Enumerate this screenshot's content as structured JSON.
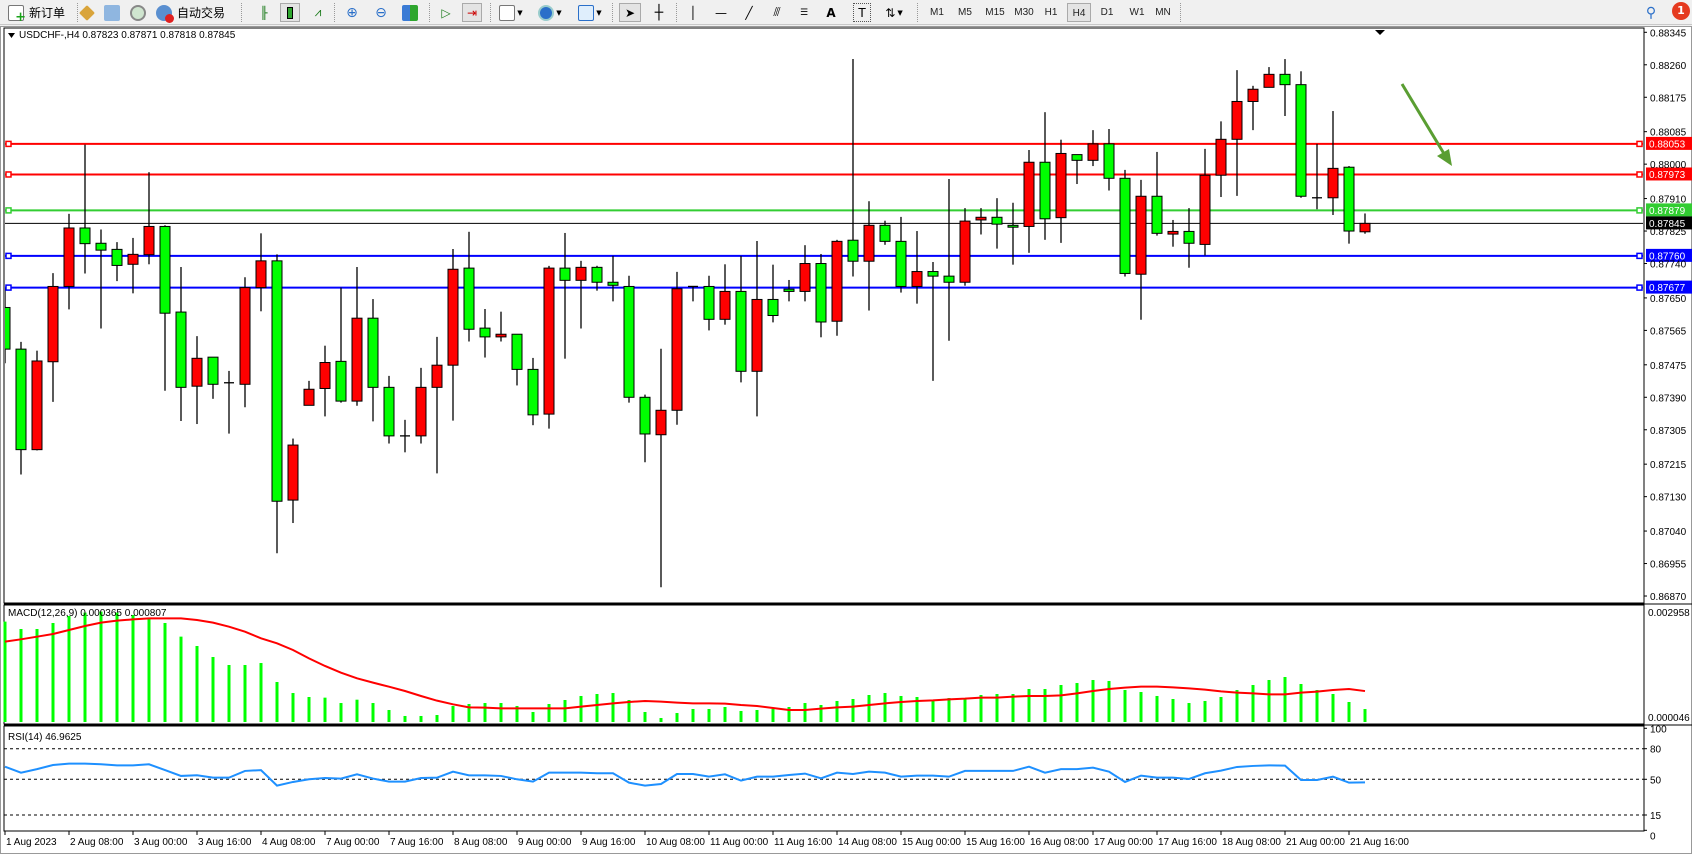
{
  "toolbar": {
    "new_order": "新订单",
    "auto_trading": "自动交易",
    "timeframes": [
      "M1",
      "M5",
      "M15",
      "M30",
      "H1",
      "H4",
      "D1",
      "W1",
      "MN"
    ],
    "active_timeframe": "H4",
    "notification_count": "1",
    "icons": [
      "new-order-icon",
      "strategy-icon",
      "history-center-icon",
      "signals-icon",
      "auto-trading-icon",
      "bar-chart-icon",
      "candlestick-icon",
      "line-chart-icon",
      "zoom-in-icon",
      "zoom-out-icon",
      "tile-windows-icon",
      "auto-scroll-icon",
      "chart-shift-icon",
      "indicators-icon",
      "periods-icon",
      "templates-icon",
      "cursor-icon",
      "crosshair-icon",
      "vertical-line-icon",
      "horizontal-line-icon",
      "trendline-icon",
      "equidistant-channel-icon",
      "fibonacci-icon",
      "text-icon",
      "text-label-icon",
      "arrows-icon",
      "search-icon",
      "notification-icon"
    ]
  },
  "chart": {
    "symbol_info": "USDCHF-,H4  0.87823 0.87871 0.87818 0.87845",
    "price_ticks": [
      "0.88345",
      "0.88260",
      "0.88175",
      "0.88085",
      "0.88000",
      "0.87910",
      "0.87825",
      "0.87740",
      "0.87650",
      "0.87565",
      "0.87475",
      "0.87390",
      "0.87305",
      "0.87215",
      "0.87130",
      "0.87040",
      "0.86955",
      "0.86870"
    ],
    "levels": [
      {
        "price": 0.88053,
        "label": "0.88053",
        "color": "#ff0000"
      },
      {
        "price": 0.87973,
        "label": "0.87973",
        "color": "#ff0000"
      },
      {
        "price": 0.87879,
        "label": "0.87879",
        "color": "#32cd32"
      },
      {
        "price": 0.8776,
        "label": "0.87760",
        "color": "#0000ff"
      },
      {
        "price": 0.87677,
        "label": "0.87677",
        "color": "#0000ff"
      }
    ],
    "current_price": {
      "price": 0.87845,
      "label": "0.87845"
    },
    "bull_color": "#ff0000",
    "bear_color": "#00ff00",
    "arrow_color": "#5a9e32"
  },
  "chart_data": {
    "type": "candlestick",
    "ylim": [
      0.8687,
      0.88345
    ],
    "candles_ohlc": [
      [
        0.87625,
        0.87675,
        0.87479,
        0.87516
      ],
      [
        0.87516,
        0.87535,
        0.87188,
        0.87253
      ],
      [
        0.87253,
        0.87512,
        0.87251,
        0.87485
      ],
      [
        0.87483,
        0.87715,
        0.87378,
        0.8768
      ],
      [
        0.8768,
        0.8787,
        0.8762,
        0.87833
      ],
      [
        0.87833,
        0.88051,
        0.87714,
        0.87792
      ],
      [
        0.87793,
        0.87829,
        0.8757,
        0.87775
      ],
      [
        0.87777,
        0.87796,
        0.87694,
        0.87735
      ],
      [
        0.87738,
        0.87807,
        0.87662,
        0.87764
      ],
      [
        0.87763,
        0.87979,
        0.87738,
        0.87837
      ],
      [
        0.87837,
        0.8784,
        0.87407,
        0.8761
      ],
      [
        0.87613,
        0.87731,
        0.87328,
        0.87416
      ],
      [
        0.87419,
        0.8755,
        0.8732,
        0.87492
      ],
      [
        0.87495,
        0.87495,
        0.87386,
        0.87424
      ],
      [
        0.87428,
        0.87459,
        0.87295,
        0.87428
      ],
      [
        0.87424,
        0.87704,
        0.87364,
        0.87677
      ],
      [
        0.87677,
        0.87819,
        0.87615,
        0.87747
      ],
      [
        0.87747,
        0.87764,
        0.86982,
        0.87118
      ],
      [
        0.87121,
        0.87282,
        0.87061,
        0.87265
      ],
      [
        0.87369,
        0.87433,
        0.87369,
        0.87411
      ],
      [
        0.87413,
        0.87525,
        0.8734,
        0.87481
      ],
      [
        0.87484,
        0.87677,
        0.87376,
        0.8738
      ],
      [
        0.8738,
        0.87731,
        0.87368,
        0.87597
      ],
      [
        0.87597,
        0.87647,
        0.87327,
        0.87416
      ],
      [
        0.87416,
        0.87446,
        0.87269,
        0.87289
      ],
      [
        0.87289,
        0.87331,
        0.87246,
        0.87289
      ],
      [
        0.87289,
        0.87467,
        0.87269,
        0.87416
      ],
      [
        0.87416,
        0.87548,
        0.87191,
        0.87474
      ],
      [
        0.87474,
        0.87778,
        0.87329,
        0.87725
      ],
      [
        0.87728,
        0.87823,
        0.87536,
        0.87568
      ],
      [
        0.87571,
        0.87621,
        0.87494,
        0.87548
      ],
      [
        0.87548,
        0.87614,
        0.87536,
        0.87555
      ],
      [
        0.87555,
        0.87555,
        0.87421,
        0.87463
      ],
      [
        0.87463,
        0.87493,
        0.87317,
        0.87344
      ],
      [
        0.87346,
        0.87734,
        0.87308,
        0.87728
      ],
      [
        0.87728,
        0.8782,
        0.87491,
        0.87696
      ],
      [
        0.87696,
        0.87747,
        0.8757,
        0.8773
      ],
      [
        0.8773,
        0.87734,
        0.87669,
        0.87691
      ],
      [
        0.87691,
        0.8776,
        0.87641,
        0.87683
      ],
      [
        0.8768,
        0.87708,
        0.87376,
        0.8739
      ],
      [
        0.8739,
        0.87397,
        0.8722,
        0.87294
      ],
      [
        0.87292,
        0.87517,
        0.86893,
        0.87356
      ],
      [
        0.87356,
        0.87718,
        0.87318,
        0.87674
      ],
      [
        0.8768,
        0.8768,
        0.87641,
        0.87678
      ],
      [
        0.8768,
        0.87708,
        0.87565,
        0.87594
      ],
      [
        0.87594,
        0.87738,
        0.8758,
        0.87667
      ],
      [
        0.87667,
        0.8776,
        0.87429,
        0.87458
      ],
      [
        0.87458,
        0.87799,
        0.8734,
        0.87646
      ],
      [
        0.87646,
        0.87737,
        0.87586,
        0.87604
      ],
      [
        0.87673,
        0.87697,
        0.87641,
        0.87667
      ],
      [
        0.87667,
        0.87788,
        0.87641,
        0.8774
      ],
      [
        0.8774,
        0.87765,
        0.87547,
        0.87587
      ],
      [
        0.87589,
        0.87802,
        0.87551,
        0.87798
      ],
      [
        0.87801,
        0.88275,
        0.87706,
        0.87746
      ],
      [
        0.87746,
        0.87903,
        0.87617,
        0.8784
      ],
      [
        0.8784,
        0.87852,
        0.87789,
        0.87798
      ],
      [
        0.87798,
        0.87862,
        0.87664,
        0.8768
      ],
      [
        0.8768,
        0.87825,
        0.87635,
        0.87719
      ],
      [
        0.87719,
        0.87744,
        0.87433,
        0.87707
      ],
      [
        0.87707,
        0.87961,
        0.87538,
        0.87691
      ],
      [
        0.87691,
        0.87885,
        0.87682,
        0.87851
      ],
      [
        0.87854,
        0.87885,
        0.87816,
        0.87861
      ],
      [
        0.87861,
        0.87911,
        0.87779,
        0.87843
      ],
      [
        0.8784,
        0.87899,
        0.87737,
        0.87835
      ],
      [
        0.87837,
        0.88037,
        0.87768,
        0.88005
      ],
      [
        0.88005,
        0.88136,
        0.87802,
        0.87857
      ],
      [
        0.8786,
        0.88064,
        0.87794,
        0.88028
      ],
      [
        0.88025,
        0.88025,
        0.87948,
        0.8801
      ],
      [
        0.8801,
        0.88089,
        0.87995,
        0.88053
      ],
      [
        0.88053,
        0.88092,
        0.87931,
        0.87963
      ],
      [
        0.87963,
        0.87985,
        0.87706,
        0.87714
      ],
      [
        0.87712,
        0.87959,
        0.87593,
        0.87916
      ],
      [
        0.87916,
        0.88032,
        0.87813,
        0.87819
      ],
      [
        0.87817,
        0.87854,
        0.87784,
        0.87824
      ],
      [
        0.87824,
        0.87885,
        0.87729,
        0.87793
      ],
      [
        0.8779,
        0.8804,
        0.87761,
        0.87971
      ],
      [
        0.87971,
        0.88112,
        0.87914,
        0.88065
      ],
      [
        0.88065,
        0.88246,
        0.87917,
        0.88164
      ],
      [
        0.88164,
        0.88205,
        0.88089,
        0.88196
      ],
      [
        0.88201,
        0.88254,
        0.88201,
        0.88235
      ],
      [
        0.88235,
        0.88275,
        0.88126,
        0.88208
      ],
      [
        0.88208,
        0.88243,
        0.87912,
        0.87916
      ],
      [
        0.87912,
        0.88053,
        0.87882,
        0.87912
      ],
      [
        0.87912,
        0.88139,
        0.87867,
        0.87989
      ],
      [
        0.87992,
        0.87995,
        0.87792,
        0.87825
      ],
      [
        0.87823,
        0.87871,
        0.87818,
        0.87845
      ]
    ],
    "time_labels": [
      "1 Aug 2023",
      "2 Aug 08:00",
      "3 Aug 00:00",
      "3 Aug 16:00",
      "4 Aug 08:00",
      "7 Aug 00:00",
      "7 Aug 16:00",
      "8 Aug 08:00",
      "9 Aug 00:00",
      "9 Aug 16:00",
      "10 Aug 08:00",
      "11 Aug 00:00",
      "11 Aug 16:00",
      "14 Aug 08:00",
      "15 Aug 00:00",
      "15 Aug 16:00",
      "16 Aug 08:00",
      "17 Aug 00:00",
      "17 Aug 16:00",
      "18 Aug 08:00",
      "21 Aug 00:00",
      "21 Aug 16:00"
    ],
    "macd": {
      "label": "MACD(12,26,9) 0.000365 0.000807",
      "ylim": [
        4.6e-05,
        0.002958
      ],
      "axis_labels": [
        "0.002958",
        "0.000046"
      ],
      "histogram": [
        0.002514,
        0.002334,
        0.002334,
        0.002481,
        0.002654,
        0.002736,
        0.00276,
        0.002736,
        0.002678,
        0.002596,
        0.002481,
        0.002145,
        0.001916,
        0.001645,
        0.001448,
        0.001448,
        0.001497,
        0.00103,
        0.000759,
        0.000661,
        0.000645,
        0.000513,
        0.000595,
        0.000513,
        0.000341,
        0.000194,
        0.000194,
        0.000218,
        0.00044,
        0.000489,
        0.000513,
        0.000513,
        0.00044,
        0.000292,
        0.000489,
        0.000587,
        0.000686,
        0.000735,
        0.000759,
        0.000587,
        0.000292,
        0.000144,
        0.000267,
        0.000366,
        0.000366,
        0.000415,
        0.000317,
        0.000341,
        0.000366,
        0.000415,
        0.000513,
        0.000464,
        0.000563,
        0.000612,
        0.00071,
        0.000759,
        0.000686,
        0.000661,
        0.000563,
        0.000636,
        0.000636,
        0.00071,
        0.000735,
        0.000735,
        0.000858,
        0.000858,
        0.000956,
        0.001005,
        0.001079,
        0.001055,
        0.000833,
        0.000784,
        0.000686,
        0.000612,
        0.000513,
        0.000563,
        0.000661,
        0.000833,
        0.000956,
        0.001079,
        0.001153,
        0.000981,
        0.000833,
        0.000735,
        0.000538,
        0.000365
      ],
      "signal": [
        0.002022,
        0.00208,
        0.002145,
        0.002211,
        0.002309,
        0.002408,
        0.00249,
        0.002539,
        0.002572,
        0.002596,
        0.002596,
        0.002596,
        0.002555,
        0.00249,
        0.002391,
        0.002268,
        0.002104,
        0.001981,
        0.001817,
        0.001612,
        0.001424,
        0.00126,
        0.00112,
        0.001014,
        0.000915,
        0.000809,
        0.000686,
        0.000571,
        0.000481,
        0.000407,
        0.000399,
        0.000382,
        0.000382,
        0.000382,
        0.000382,
        0.000382,
        0.000423,
        0.000464,
        0.000505,
        0.000538,
        0.000563,
        0.000546,
        0.000522,
        0.000505,
        0.000505,
        0.000497,
        0.000464,
        0.00044,
        0.00039,
        0.000341,
        0.000341,
        0.000374,
        0.000407,
        0.000423,
        0.000464,
        0.000505,
        0.000538,
        0.000563,
        0.000579,
        0.000604,
        0.00062,
        0.000645,
        0.000645,
        0.000669,
        0.000686,
        0.000686,
        0.000702,
        0.000751,
        0.000809,
        0.000858,
        0.000891,
        0.000915,
        0.000915,
        0.000899,
        0.000874,
        0.000841,
        0.0008,
        0.000768,
        0.000751,
        0.000727,
        0.000727,
        0.000768,
        0.000792,
        0.000833,
        0.000858,
        0.000807
      ],
      "histogram_color": "#00ff00",
      "signal_color": "#ff0000"
    },
    "rsi": {
      "label": "RSI(14) 46.9625",
      "levels": [
        80,
        50,
        15
      ],
      "axis_labels": [
        "100",
        "80",
        "50",
        "15",
        "0"
      ],
      "values": [
        62.4,
        56.5,
        60,
        64,
        65.4,
        65.4,
        64.7,
        63.7,
        63.7,
        64.7,
        59,
        53.3,
        54,
        51.6,
        51.6,
        58.2,
        59,
        43.8,
        47.4,
        50,
        51.3,
        50.7,
        54.9,
        50.7,
        47.7,
        47.7,
        51.3,
        51.6,
        57.5,
        53.9,
        53.9,
        53.3,
        50,
        47.7,
        56.5,
        56.5,
        56.5,
        55.9,
        55.9,
        46.7,
        43.8,
        45.4,
        55.2,
        55.2,
        52.6,
        54.9,
        48.7,
        52.6,
        52.6,
        54.2,
        55.6,
        51,
        56.5,
        55.2,
        57.5,
        56.5,
        52.6,
        53.6,
        53.6,
        52.6,
        58.2,
        58.2,
        58.2,
        58.2,
        62.4,
        56.5,
        60,
        60,
        61.4,
        57.5,
        47.4,
        53.6,
        51.6,
        51.6,
        50.3,
        55.9,
        58.5,
        62.1,
        63.1,
        63.7,
        63.4,
        49.3,
        49.3,
        52.6,
        46.7,
        46.9625
      ],
      "color": "#1e90ff"
    }
  }
}
